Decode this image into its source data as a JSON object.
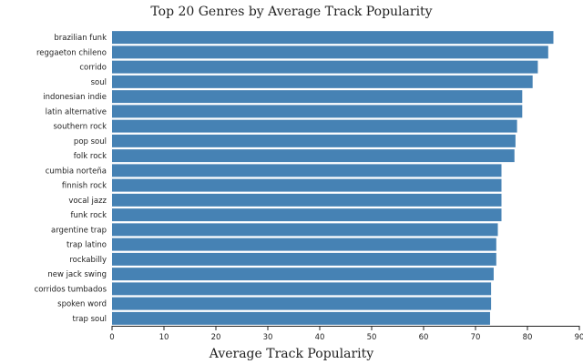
{
  "chart_data": {
    "type": "bar",
    "orientation": "horizontal",
    "title": "Top 20 Genres by Average Track Popularity",
    "xlabel": "Average Track Popularity",
    "ylabel": "",
    "xlim": [
      0,
      90
    ],
    "xticks": [
      0,
      10,
      20,
      30,
      40,
      50,
      60,
      70,
      80,
      90
    ],
    "bar_color": "#4682b4",
    "grid": false,
    "categories": [
      "brazilian funk",
      "reggaeton chileno",
      "corrido",
      "soul",
      "indonesian indie",
      "latin alternative",
      "southern rock",
      "pop soul",
      "folk rock",
      "cumbia norteña",
      "finnish rock",
      "vocal jazz",
      "funk rock",
      "argentine trap",
      "trap latino",
      "rockabilly",
      "new jack swing",
      "corridos tumbados",
      "spoken word",
      "trap soul"
    ],
    "values": [
      85,
      84,
      82,
      81,
      79,
      79,
      78,
      77.7,
      77.5,
      75,
      75,
      75,
      75,
      74.3,
      74,
      74,
      73.5,
      73,
      73,
      72.8
    ]
  }
}
